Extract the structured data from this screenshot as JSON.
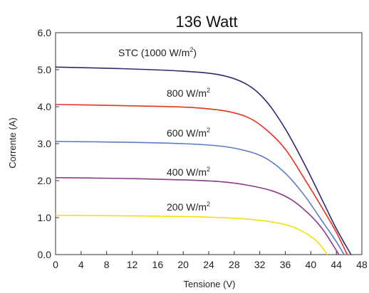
{
  "chart_data": {
    "type": "line",
    "title": "136 Watt",
    "xlabel": "Tensione (V)",
    "ylabel": "Corrente (A)",
    "xlim": [
      0,
      48
    ],
    "ylim": [
      0,
      6
    ],
    "xticks": [
      "0",
      "4",
      "8",
      "12",
      "16",
      "20",
      "24",
      "28",
      "32",
      "36",
      "40",
      "44",
      "48"
    ],
    "yticks": [
      "0.0",
      "1.0",
      "2.0",
      "3.0",
      "4.0",
      "5.0",
      "6.0"
    ],
    "grid": false,
    "series": [
      {
        "name": "STC (1000 W/m2)",
        "label_main": "STC (1000 W/m",
        "label_sup": "2",
        "label_tail": ")",
        "color": "#2e2a6e",
        "points": [
          [
            0,
            5.07
          ],
          [
            10,
            5.03
          ],
          [
            20,
            4.96
          ],
          [
            26,
            4.85
          ],
          [
            30,
            4.6
          ],
          [
            33,
            4.15
          ],
          [
            36,
            3.4
          ],
          [
            39,
            2.45
          ],
          [
            42,
            1.4
          ],
          [
            44,
            0.7
          ],
          [
            46.3,
            0
          ]
        ]
      },
      {
        "name": "800 W/m2",
        "label_main": "800 W/m",
        "label_sup": "2",
        "label_tail": "",
        "color": "#e8321e",
        "points": [
          [
            0,
            4.06
          ],
          [
            10,
            4.03
          ],
          [
            20,
            3.99
          ],
          [
            26,
            3.9
          ],
          [
            30,
            3.72
          ],
          [
            33,
            3.38
          ],
          [
            36,
            2.85
          ],
          [
            39,
            2.05
          ],
          [
            42,
            1.2
          ],
          [
            44,
            0.6
          ],
          [
            45.7,
            0
          ]
        ]
      },
      {
        "name": "600 W/m2",
        "label_main": "600 W/m",
        "label_sup": "2",
        "label_tail": "",
        "color": "#5b7bc4",
        "points": [
          [
            0,
            3.06
          ],
          [
            10,
            3.04
          ],
          [
            20,
            3.0
          ],
          [
            26,
            2.93
          ],
          [
            30,
            2.8
          ],
          [
            33,
            2.6
          ],
          [
            36,
            2.2
          ],
          [
            39,
            1.6
          ],
          [
            42,
            0.85
          ],
          [
            44,
            0.35
          ],
          [
            45.2,
            0
          ]
        ]
      },
      {
        "name": "400 W/m2",
        "label_main": "400 W/m",
        "label_sup": "2",
        "label_tail": "",
        "color": "#8a3a8a",
        "points": [
          [
            0,
            2.08
          ],
          [
            10,
            2.06
          ],
          [
            20,
            2.02
          ],
          [
            26,
            1.97
          ],
          [
            30,
            1.88
          ],
          [
            34,
            1.72
          ],
          [
            37,
            1.48
          ],
          [
            40,
            1.05
          ],
          [
            42,
            0.65
          ],
          [
            44.4,
            0
          ]
        ]
      },
      {
        "name": "200 W/m2",
        "label_main": "200 W/m",
        "label_sup": "2",
        "label_tail": "",
        "color": "#f0e010",
        "points": [
          [
            0,
            1.06
          ],
          [
            10,
            1.05
          ],
          [
            20,
            1.03
          ],
          [
            26,
            1.0
          ],
          [
            30,
            0.96
          ],
          [
            34,
            0.88
          ],
          [
            37,
            0.76
          ],
          [
            39,
            0.6
          ],
          [
            41,
            0.35
          ],
          [
            42.6,
            0
          ]
        ]
      }
    ]
  }
}
